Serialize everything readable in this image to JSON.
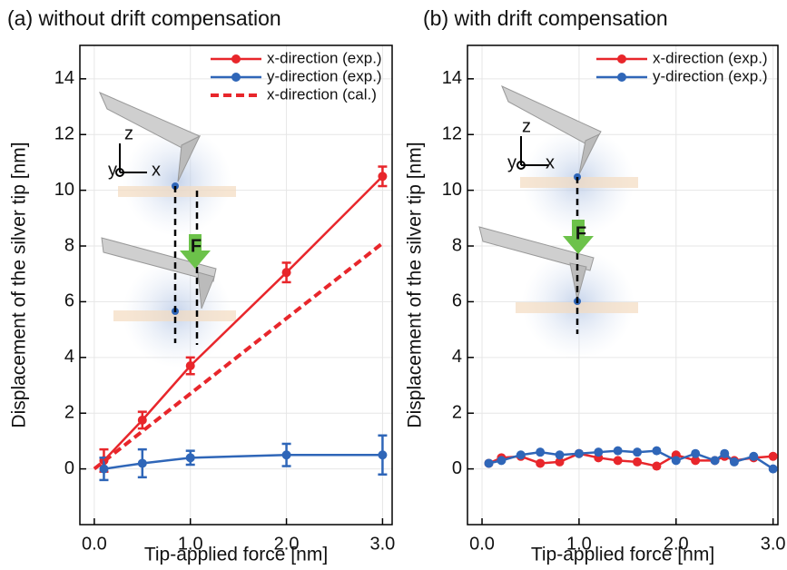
{
  "chart_data": [
    {
      "type": "line",
      "title": "(a) without drift compensation",
      "x_label": "Tip-applied force [nm]",
      "y_label": "Displacement of the silver tip [nm]",
      "xlim": [
        -0.15,
        3.1
      ],
      "ylim": [
        -2,
        15.2
      ],
      "xticks": [
        {
          "value": 0,
          "label": "0.0"
        },
        {
          "value": 1,
          "label": "1.0"
        },
        {
          "value": 2,
          "label": "2.0"
        },
        {
          "value": 3,
          "label": "3.0"
        }
      ],
      "yticks": [
        0,
        2,
        4,
        6,
        8,
        10,
        12,
        14
      ],
      "grid": true,
      "legend": "upper right",
      "annotations": [
        "z",
        "y",
        "x",
        "F"
      ],
      "series": [
        {
          "name": "x-direction (exp.)",
          "color": "#e8262b",
          "marker": true,
          "dashed": false,
          "x": [
            0.1,
            0.5,
            1.0,
            2.0,
            3.0
          ],
          "values": [
            0.3,
            1.75,
            3.7,
            7.05,
            10.5
          ],
          "errors": [
            0.4,
            0.3,
            0.3,
            0.35,
            0.35
          ]
        },
        {
          "name": "y-direction (exp.)",
          "color": "#2f66b8",
          "marker": true,
          "dashed": false,
          "x": [
            0.1,
            0.5,
            1.0,
            2.0,
            3.0
          ],
          "values": [
            0.0,
            0.2,
            0.4,
            0.5,
            0.5
          ],
          "errors": [
            0.4,
            0.5,
            0.25,
            0.4,
            0.7
          ]
        },
        {
          "name": "x-direction (cal.)",
          "color": "#e8262b",
          "marker": false,
          "dashed": true,
          "x": [
            0,
            3.0
          ],
          "values": [
            0,
            8.1
          ]
        }
      ]
    },
    {
      "type": "line",
      "title": "(b) with drift compensation",
      "x_label": "Tip-applied force [nm]",
      "y_label": "Displacement of the silver tip [nm]",
      "xlim": [
        -0.15,
        3.05
      ],
      "ylim": [
        -2,
        15.2
      ],
      "xticks": [
        {
          "value": 0,
          "label": "0.0"
        },
        {
          "value": 1,
          "label": "1.0"
        },
        {
          "value": 2,
          "label": "2.0"
        },
        {
          "value": 3,
          "label": "3.0"
        }
      ],
      "yticks": [
        0,
        2,
        4,
        6,
        8,
        10,
        12,
        14
      ],
      "grid": true,
      "legend": "upper right",
      "annotations": [
        "z",
        "y",
        "x",
        "F"
      ],
      "series": [
        {
          "name": "x-direction (exp.)",
          "color": "#e8262b",
          "marker": true,
          "dashed": false,
          "x": [
            0.07,
            0.2,
            0.4,
            0.6,
            0.8,
            1.0,
            1.2,
            1.4,
            1.6,
            1.8,
            2.0,
            2.2,
            2.4,
            2.5,
            2.6,
            2.8,
            3.0
          ],
          "values": [
            0.2,
            0.4,
            0.45,
            0.2,
            0.25,
            0.55,
            0.4,
            0.3,
            0.25,
            0.1,
            0.5,
            0.3,
            0.3,
            0.45,
            0.3,
            0.4,
            0.45
          ]
        },
        {
          "name": "y-direction (exp.)",
          "color": "#2f66b8",
          "marker": true,
          "dashed": false,
          "x": [
            0.07,
            0.2,
            0.4,
            0.6,
            0.8,
            1.0,
            1.2,
            1.4,
            1.6,
            1.8,
            2.0,
            2.2,
            2.4,
            2.5,
            2.6,
            2.8,
            3.0
          ],
          "values": [
            0.2,
            0.3,
            0.5,
            0.6,
            0.5,
            0.55,
            0.6,
            0.65,
            0.6,
            0.65,
            0.3,
            0.55,
            0.3,
            0.55,
            0.25,
            0.45,
            0.0
          ]
        }
      ]
    }
  ]
}
